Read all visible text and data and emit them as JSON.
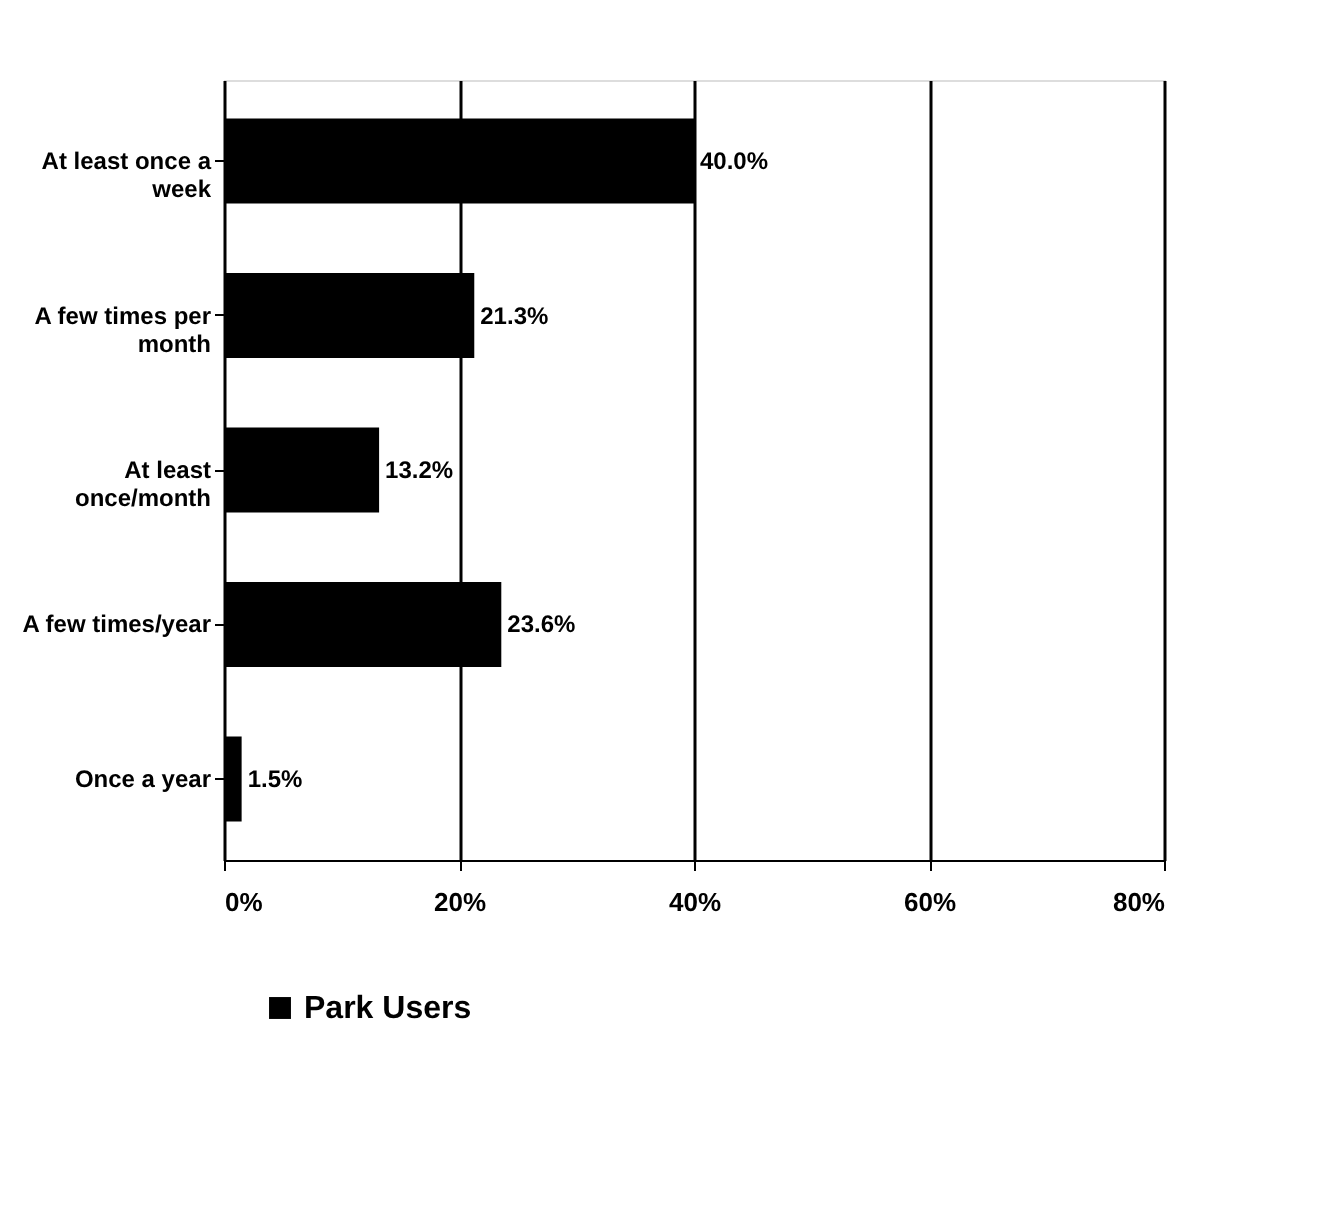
{
  "chart_data": {
    "type": "bar",
    "orientation": "horizontal",
    "categories": [
      "At least once a week",
      "A few times per month",
      "At least once/month",
      "A few times/year",
      "Once a year"
    ],
    "series": [
      {
        "name": "Park Users",
        "color": "#000000",
        "values": [
          40.0,
          21.3,
          13.2,
          23.6,
          1.5
        ],
        "value_labels": [
          "40.0%",
          "21.3%",
          "13.2%",
          "23.6%",
          "1.5%"
        ]
      }
    ],
    "xlim": [
      0,
      80
    ],
    "xticks": [
      {
        "value": 0,
        "label": "0%"
      },
      {
        "value": 20,
        "label": "20%"
      },
      {
        "value": 40,
        "label": "40%"
      },
      {
        "value": 60,
        "label": "60%"
      },
      {
        "value": 80,
        "label": "80%"
      }
    ],
    "grid": "x",
    "legend": "bottom"
  }
}
